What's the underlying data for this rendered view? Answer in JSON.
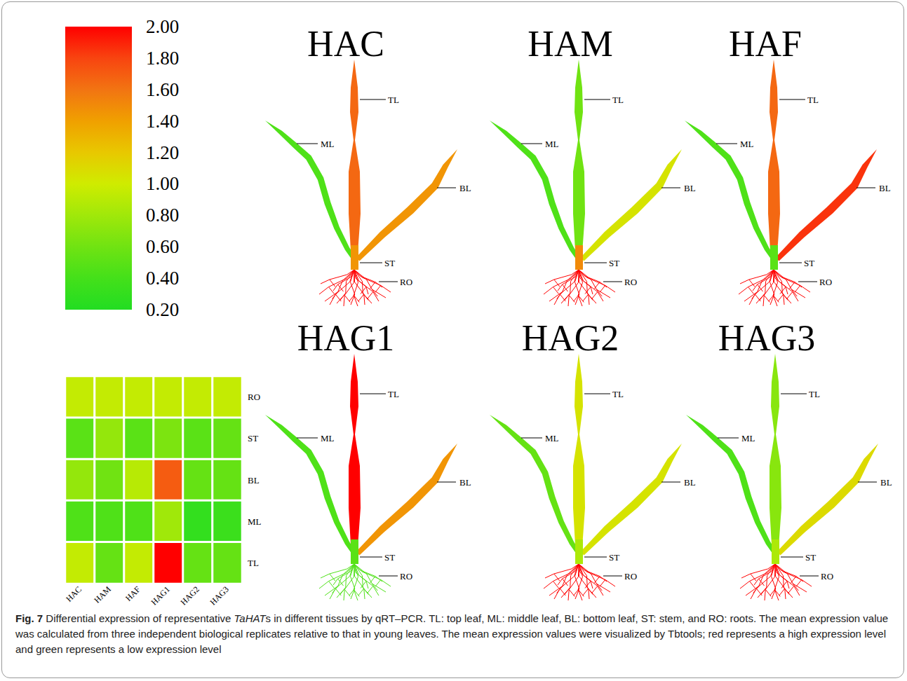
{
  "chart_data": {
    "type": "heatmap",
    "x": [
      "HAC",
      "HAM",
      "HAF",
      "HAG1",
      "HAG2",
      "HAG3"
    ],
    "y": [
      "RO",
      "ST",
      "BL",
      "ML",
      "TL"
    ],
    "values": [
      [
        0.95,
        0.95,
        0.95,
        0.95,
        0.95,
        0.95
      ],
      [
        0.5,
        0.75,
        0.5,
        0.65,
        0.5,
        0.55
      ],
      [
        0.75,
        0.6,
        0.9,
        1.7,
        0.55,
        0.55
      ],
      [
        0.45,
        0.45,
        0.45,
        0.8,
        0.3,
        0.35
      ],
      [
        0.95,
        0.55,
        0.95,
        2.0,
        0.55,
        0.55
      ]
    ],
    "colorbar": {
      "range": [
        0.2,
        2.0
      ],
      "ticks": [
        {
          "value": 2.0,
          "label": "2.00"
        },
        {
          "value": 1.8,
          "label": "1.80"
        },
        {
          "value": 1.6,
          "label": "1.60"
        },
        {
          "value": 1.4,
          "label": "1.40"
        },
        {
          "value": 1.2,
          "label": "1.20"
        },
        {
          "value": 1.0,
          "label": "1.00"
        },
        {
          "value": 0.8,
          "label": "0.80"
        },
        {
          "value": 0.6,
          "label": "0.60"
        },
        {
          "value": 0.4,
          "label": "0.40"
        },
        {
          "value": 0.2,
          "label": "0.20"
        }
      ]
    }
  },
  "plants": {
    "tissues": [
      "TL",
      "ML",
      "BL",
      "ST",
      "RO"
    ],
    "panels": [
      {
        "title": "HAC",
        "values": [
          1.65,
          0.45,
          1.45,
          1.45,
          2.0
        ]
      },
      {
        "title": "HAM",
        "values": [
          0.6,
          0.45,
          1.05,
          1.5,
          2.0
        ]
      },
      {
        "title": "HAF",
        "values": [
          1.65,
          0.45,
          1.85,
          0.5,
          2.0
        ]
      },
      {
        "title": "HAG1",
        "values": [
          2.0,
          0.45,
          1.45,
          0.5,
          0.45
        ]
      },
      {
        "title": "HAG2",
        "values": [
          1.05,
          0.55,
          1.05,
          0.85,
          2.0
        ]
      },
      {
        "title": "HAG3",
        "values": [
          0.7,
          0.45,
          1.1,
          0.85,
          2.0
        ]
      }
    ]
  },
  "caption": {
    "label": "Fig. 7",
    "parts": [
      {
        "text": " Differential expression of representative "
      },
      {
        "text": "TaHAT",
        "italic": true
      },
      {
        "text": "s in different tissues by qRT–PCR. TL: top leaf, ML: middle leaf, BL: bottom leaf, ST: stem, and RO: roots. The mean expression value was calculated from three independent biological replicates relative to that in young leaves. The mean expression values were visualized by Tbtools; red represents a high expression level and green represents a low expression level"
      }
    ]
  }
}
